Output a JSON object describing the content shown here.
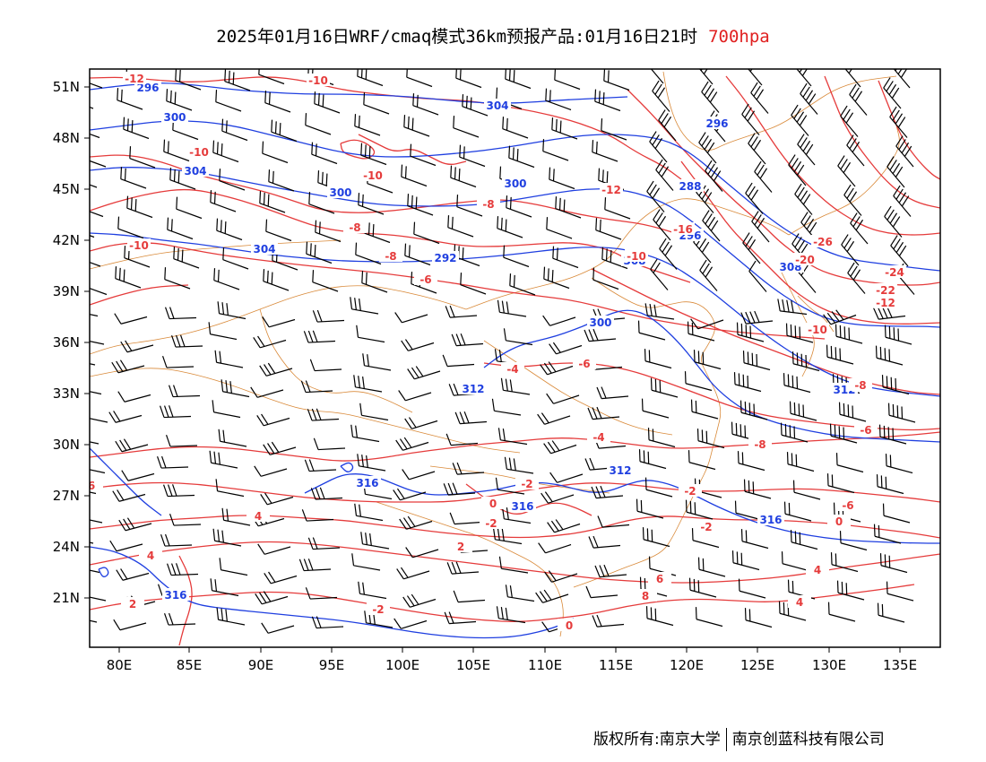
{
  "title": {
    "main": "2025年01月16日WRF/cmaq模式36km预报产品:01月16日21时",
    "level": "700hpa"
  },
  "axes": {
    "lat_labels": [
      "51N",
      "48N",
      "45N",
      "42N",
      "39N",
      "36N",
      "33N",
      "30N",
      "27N",
      "24N",
      "21N"
    ],
    "lon_labels": [
      "80E",
      "85E",
      "90E",
      "95E",
      "100E",
      "105E",
      "110E",
      "115E",
      "120E",
      "125E",
      "130E",
      "135E"
    ]
  },
  "legend_colors": {
    "geopotential_contour": "#1f3fe0",
    "temperature_contour": "#e53b3b",
    "boundary": "#d98a3a",
    "wind_barb": "#000000"
  },
  "map_data": {
    "type": "map",
    "region": "China and surroundings",
    "lon_range": [
      78,
      138
    ],
    "lat_range": [
      17.5,
      52
    ],
    "geopotential_labels": [
      "296",
      "300",
      "304",
      "300",
      "304",
      "296",
      "288",
      "296",
      "300",
      "304",
      "292",
      "308",
      "308",
      "300",
      "312",
      "312",
      "312",
      "316",
      "316",
      "316",
      "316"
    ],
    "temperature_labels": [
      "-12",
      "-10",
      "-10",
      "-10",
      "-8",
      "-10",
      "-8",
      "-6",
      "-8",
      "-12",
      "-10",
      "-16",
      "-20",
      "-26",
      "-24",
      "-22",
      "-12",
      "-10",
      "-8",
      "-6",
      "-8",
      "-6",
      "-4",
      "-2",
      "-2",
      "0",
      "0",
      "-2",
      "-2",
      "2",
      "4",
      "4",
      "4",
      "6",
      "6",
      "8",
      "2",
      "-2",
      "0",
      "4",
      "-4",
      "-6"
    ]
  },
  "footer": {
    "copyright": "版权所有:南京大学",
    "company": "南京创蓝科技有限公司"
  }
}
